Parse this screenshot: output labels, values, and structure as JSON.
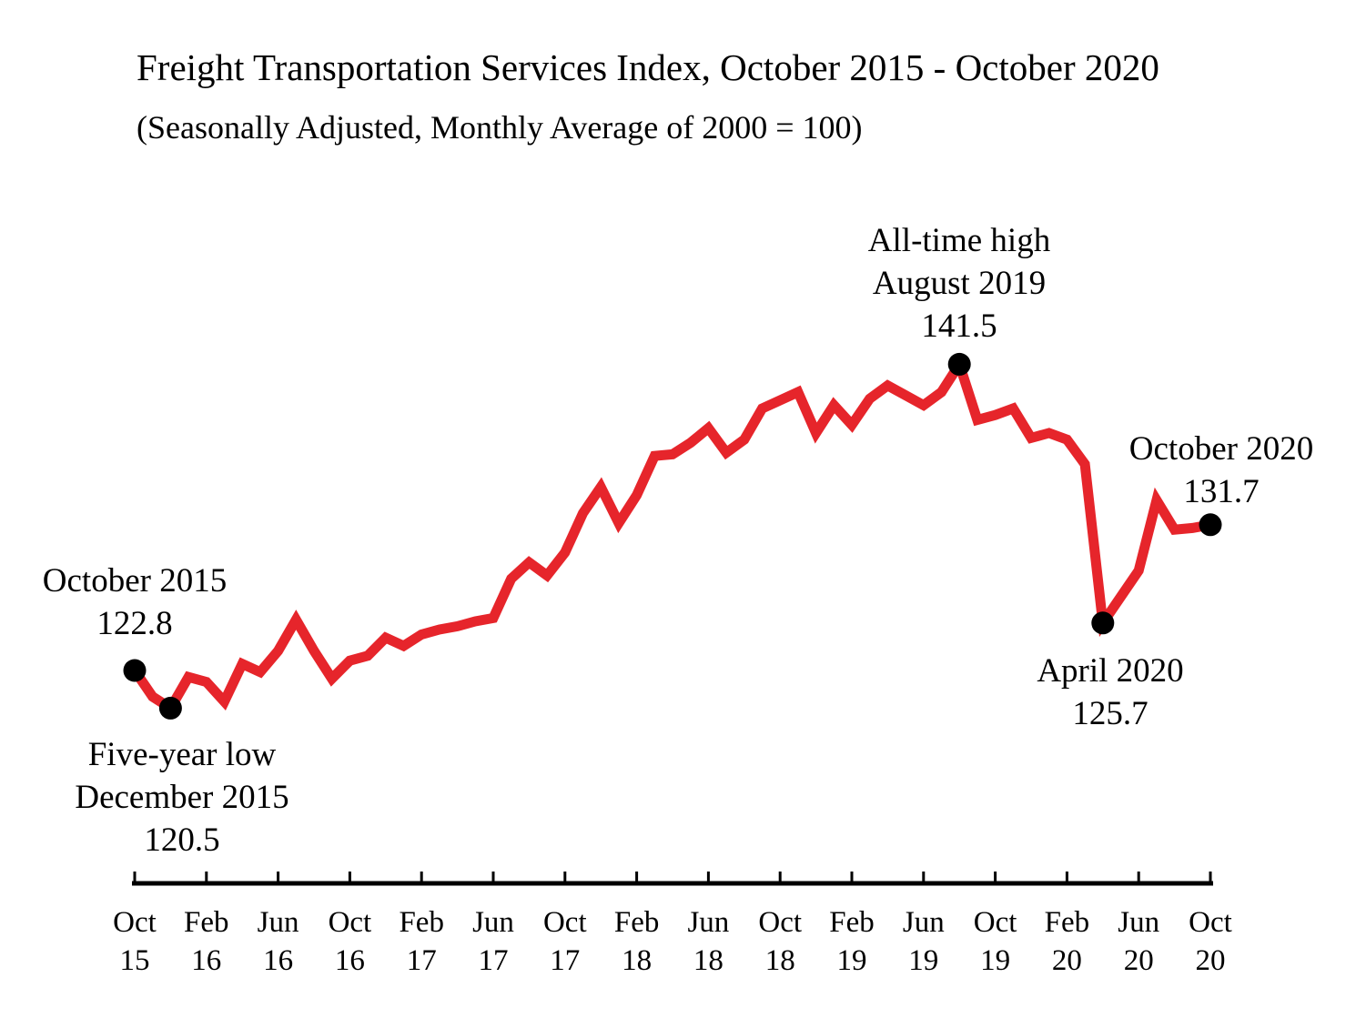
{
  "title": "Freight Transportation Services Index, October 2015 - October 2020",
  "subtitle": "(Seasonally Adjusted, Monthly Average of 2000 = 100)",
  "colors": {
    "background": "#ffffff",
    "line": "#e6252b",
    "marker": "#000000",
    "axis": "#000000",
    "text": "#000000"
  },
  "chart_data": {
    "type": "line",
    "series_name": "Freight Transportation Services Index",
    "index_base": "2000 = 100",
    "x": [
      "2015-10",
      "2015-11",
      "2015-12",
      "2016-01",
      "2016-02",
      "2016-03",
      "2016-04",
      "2016-05",
      "2016-06",
      "2016-07",
      "2016-08",
      "2016-09",
      "2016-10",
      "2016-11",
      "2016-12",
      "2017-01",
      "2017-02",
      "2017-03",
      "2017-04",
      "2017-05",
      "2017-06",
      "2017-07",
      "2017-08",
      "2017-09",
      "2017-10",
      "2017-11",
      "2017-12",
      "2018-01",
      "2018-02",
      "2018-03",
      "2018-04",
      "2018-05",
      "2018-06",
      "2018-07",
      "2018-08",
      "2018-09",
      "2018-10",
      "2018-11",
      "2018-12",
      "2019-01",
      "2019-02",
      "2019-03",
      "2019-04",
      "2019-05",
      "2019-06",
      "2019-07",
      "2019-08",
      "2019-09",
      "2019-10",
      "2019-11",
      "2019-12",
      "2020-01",
      "2020-02",
      "2020-03",
      "2020-04",
      "2020-05",
      "2020-06",
      "2020-07",
      "2020-08",
      "2020-09",
      "2020-10"
    ],
    "values": [
      122.8,
      121.2,
      120.5,
      122.4,
      122.1,
      120.9,
      123.2,
      122.7,
      124.0,
      125.9,
      124.0,
      122.3,
      123.4,
      123.7,
      124.8,
      124.3,
      125.0,
      125.3,
      125.5,
      125.8,
      126.0,
      128.4,
      129.4,
      128.6,
      130.0,
      132.4,
      134.0,
      131.8,
      133.5,
      135.9,
      136.0,
      136.7,
      137.6,
      136.1,
      136.9,
      138.8,
      139.3,
      139.8,
      137.3,
      139.0,
      137.8,
      139.4,
      140.2,
      139.6,
      139.0,
      139.8,
      141.5,
      138.1,
      138.4,
      138.8,
      137.0,
      137.3,
      136.9,
      135.4,
      125.7,
      127.3,
      128.9,
      133.2,
      131.4,
      131.5,
      131.7
    ],
    "y_axis_visible": false,
    "grid": false,
    "legend": "none",
    "x_tick_labels": [
      {
        "month": "Oct",
        "year": "15"
      },
      {
        "month": "Feb",
        "year": "16"
      },
      {
        "month": "Jun",
        "year": "16"
      },
      {
        "month": "Oct",
        "year": "16"
      },
      {
        "month": "Feb",
        "year": "17"
      },
      {
        "month": "Jun",
        "year": "17"
      },
      {
        "month": "Oct",
        "year": "17"
      },
      {
        "month": "Feb",
        "year": "18"
      },
      {
        "month": "Jun",
        "year": "18"
      },
      {
        "month": "Oct",
        "year": "18"
      },
      {
        "month": "Feb",
        "year": "19"
      },
      {
        "month": "Jun",
        "year": "19"
      },
      {
        "month": "Oct",
        "year": "19"
      },
      {
        "month": "Feb",
        "year": "20"
      },
      {
        "month": "Jun",
        "year": "20"
      },
      {
        "month": "Oct",
        "year": "20"
      }
    ],
    "markers": [
      "2015-10",
      "2015-12",
      "2019-08",
      "2020-04",
      "2020-10"
    ],
    "annotations": [
      {
        "id": "october-2015",
        "x": "2015-10",
        "value": 122.8,
        "lines": [
          "October 2015",
          "122.8"
        ]
      },
      {
        "id": "five-year-low",
        "x": "2015-12",
        "value": 120.5,
        "lines": [
          "Five-year low",
          "December 2015",
          "120.5"
        ]
      },
      {
        "id": "all-time-high",
        "x": "2019-08",
        "value": 141.5,
        "lines": [
          "All-time high",
          "August 2019",
          "141.5"
        ]
      },
      {
        "id": "april-2020",
        "x": "2020-04",
        "value": 125.7,
        "lines": [
          "April 2020",
          "125.7"
        ]
      },
      {
        "id": "october-2020",
        "x": "2020-10",
        "value": 131.7,
        "lines": [
          "October 2020",
          "131.7"
        ]
      }
    ]
  }
}
